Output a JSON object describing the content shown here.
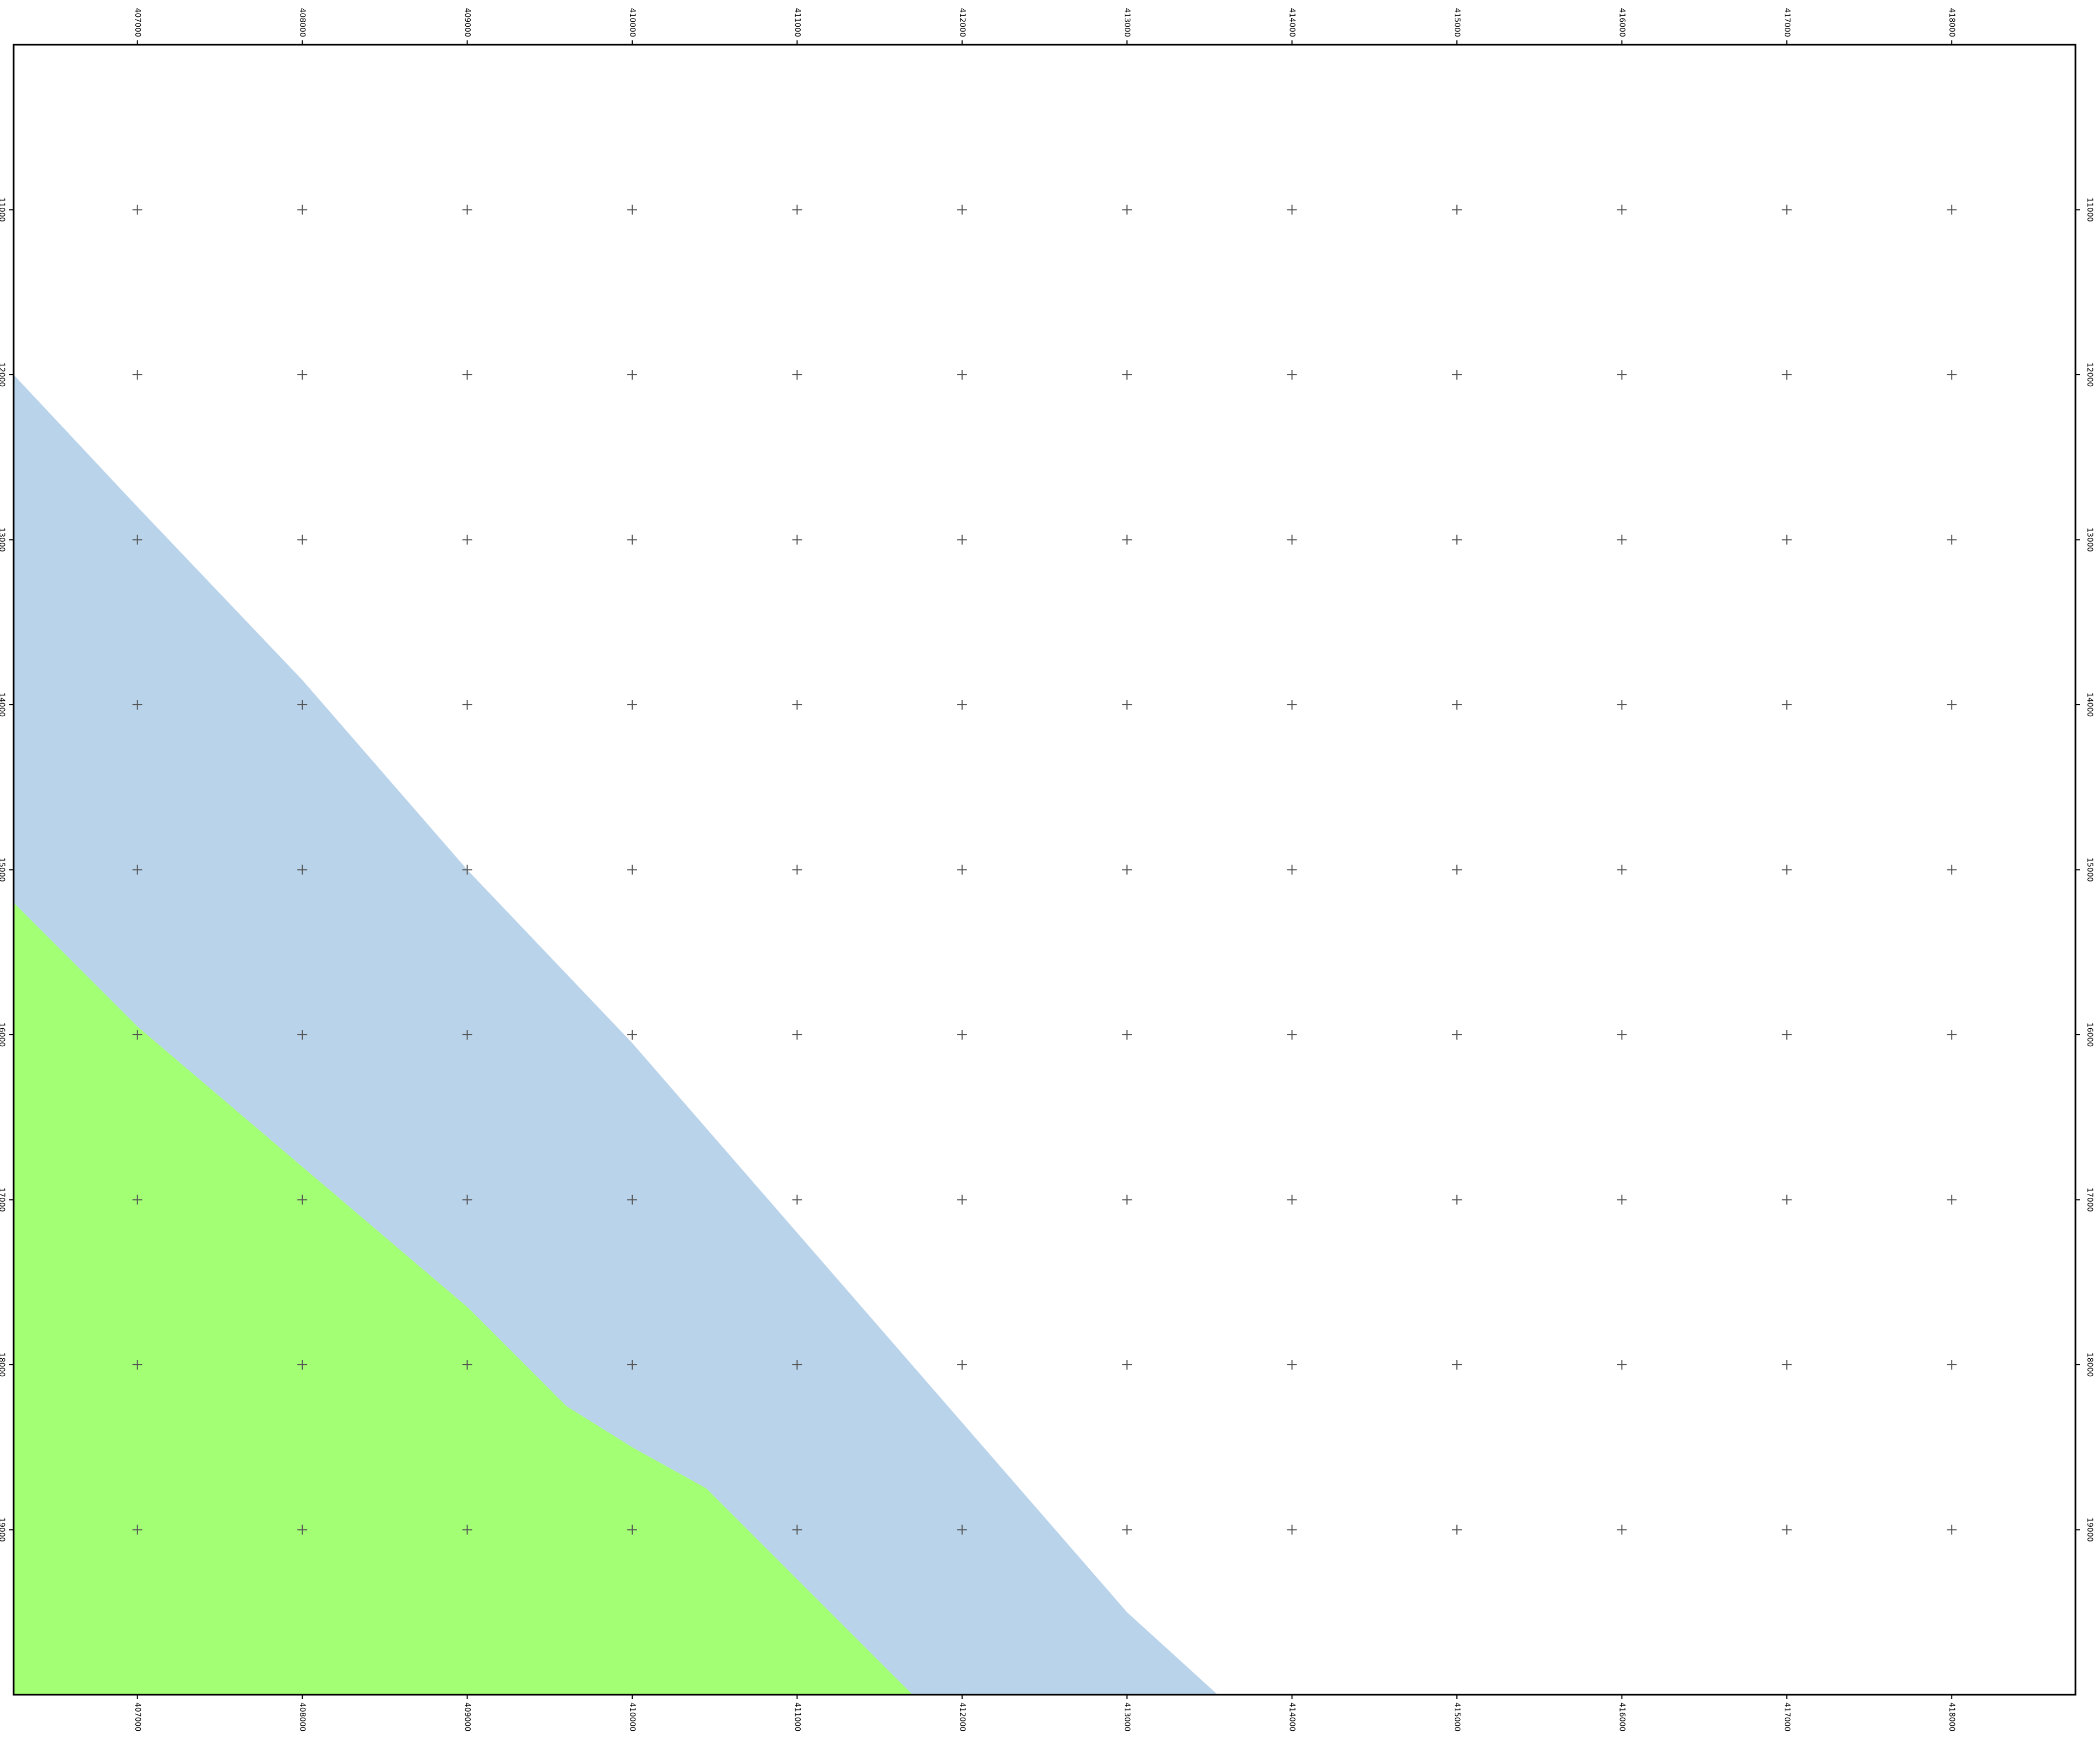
{
  "map": {
    "x_range": [
      406250,
      418750
    ],
    "y_range": [
      10000,
      20000
    ],
    "x_ticks": [
      407000,
      408000,
      409000,
      410000,
      411000,
      412000,
      413000,
      414000,
      415000,
      416000,
      417000,
      418000
    ],
    "x_tick_labels": [
      "407000",
      "408000",
      "409000",
      "410000",
      "411000",
      "412000",
      "413000",
      "414000",
      "415000",
      "416000",
      "417000",
      "418000"
    ],
    "y_ticks": [
      11000,
      12000,
      13000,
      14000,
      15000,
      16000,
      17000,
      18000,
      19000
    ],
    "y_tick_labels": [
      "11000",
      "12000",
      "13000",
      "14000",
      "15000",
      "16000",
      "17000",
      "18000",
      "19000"
    ],
    "colors": {
      "background": "#ffffff",
      "frame": "#000000",
      "grid_cross": "#555555",
      "region_blue": "#b9d3eb",
      "region_green": "#a3ff74"
    },
    "regions": [
      {
        "id": "blue",
        "color": "#b9d3eb",
        "points": [
          [
            406250,
            12000
          ],
          [
            407000,
            12800
          ],
          [
            408000,
            13850
          ],
          [
            409000,
            15000
          ],
          [
            410000,
            16050
          ],
          [
            411000,
            17200
          ],
          [
            412000,
            18350
          ],
          [
            413000,
            19500
          ],
          [
            413550,
            20000
          ],
          [
            406250,
            20000
          ]
        ]
      },
      {
        "id": "green",
        "color": "#a3ff74",
        "points": [
          [
            406250,
            15200
          ],
          [
            407000,
            15950
          ],
          [
            408000,
            16800
          ],
          [
            409000,
            17650
          ],
          [
            409600,
            18250
          ],
          [
            410000,
            18500
          ],
          [
            410450,
            18750
          ],
          [
            411000,
            19300
          ],
          [
            411700,
            20000
          ],
          [
            406250,
            20000
          ]
        ]
      }
    ]
  }
}
